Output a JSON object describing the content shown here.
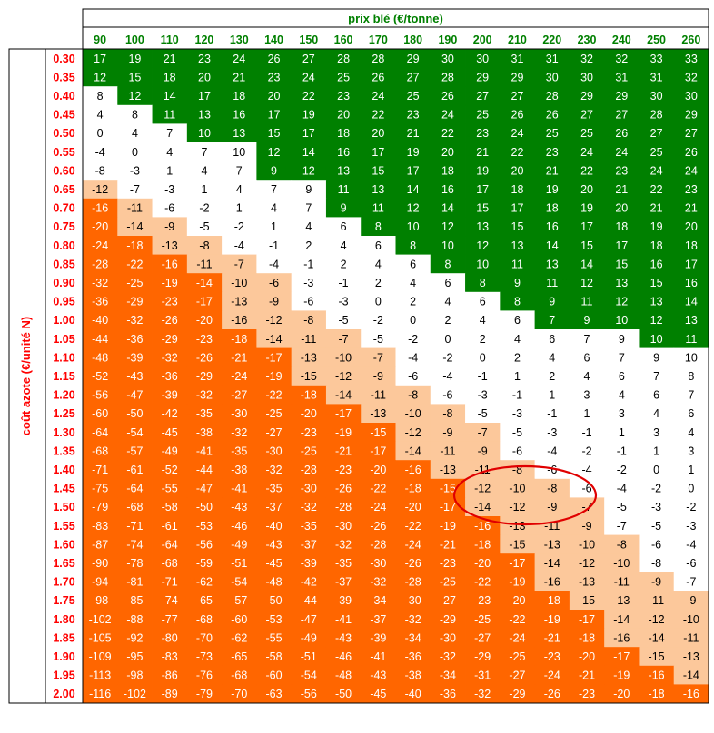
{
  "chart_data": {
    "type": "heatmap",
    "title": "",
    "xlabel": "prix blé (€/tonne)",
    "ylabel": "coût azote (€/unité N)",
    "x": [
      "90",
      "100",
      "110",
      "120",
      "130",
      "140",
      "150",
      "160",
      "170",
      "180",
      "190",
      "200",
      "210",
      "220",
      "230",
      "240",
      "250",
      "260"
    ],
    "y": [
      "0.30",
      "0.35",
      "0.40",
      "0.45",
      "0.50",
      "0.55",
      "0.60",
      "0.65",
      "0.70",
      "0.75",
      "0.80",
      "0.85",
      "0.90",
      "0.95",
      "1.00",
      "1.05",
      "1.10",
      "1.15",
      "1.20",
      "1.25",
      "1.30",
      "1.35",
      "1.40",
      "1.45",
      "1.50",
      "1.55",
      "1.60",
      "1.65",
      "1.70",
      "1.75",
      "1.80",
      "1.85",
      "1.90",
      "1.95",
      "2.00"
    ],
    "values": [
      [
        17,
        19,
        21,
        23,
        24,
        26,
        27,
        28,
        28,
        29,
        30,
        30,
        31,
        31,
        32,
        32,
        33,
        33
      ],
      [
        12,
        15,
        18,
        20,
        21,
        23,
        24,
        25,
        26,
        27,
        28,
        29,
        29,
        30,
        30,
        31,
        31,
        32
      ],
      [
        8,
        12,
        14,
        17,
        18,
        20,
        22,
        23,
        24,
        25,
        26,
        27,
        27,
        28,
        29,
        29,
        30,
        30
      ],
      [
        4,
        8,
        11,
        13,
        16,
        17,
        19,
        20,
        22,
        23,
        24,
        25,
        26,
        26,
        27,
        27,
        28,
        29
      ],
      [
        0,
        4,
        7,
        10,
        13,
        15,
        17,
        18,
        20,
        21,
        22,
        23,
        24,
        25,
        25,
        26,
        27,
        27
      ],
      [
        -4,
        0,
        4,
        7,
        10,
        12,
        14,
        16,
        17,
        19,
        20,
        21,
        22,
        23,
        24,
        24,
        25,
        26
      ],
      [
        -8,
        -3,
        1,
        4,
        7,
        9,
        12,
        13,
        15,
        17,
        18,
        19,
        20,
        21,
        22,
        23,
        24,
        24
      ],
      [
        -12,
        -7,
        -3,
        1,
        4,
        7,
        9,
        11,
        13,
        14,
        16,
        17,
        18,
        19,
        20,
        21,
        22,
        23
      ],
      [
        -16,
        -11,
        -6,
        -2,
        1,
        4,
        7,
        9,
        11,
        12,
        14,
        15,
        17,
        18,
        19,
        20,
        21,
        21
      ],
      [
        -20,
        -14,
        -9,
        -5,
        -2,
        1,
        4,
        6,
        8,
        10,
        12,
        13,
        15,
        16,
        17,
        18,
        19,
        20
      ],
      [
        -24,
        -18,
        -13,
        -8,
        -4,
        -1,
        2,
        4,
        6,
        8,
        10,
        12,
        13,
        14,
        15,
        17,
        18,
        18
      ],
      [
        -28,
        -22,
        -16,
        -11,
        -7,
        -4,
        -1,
        2,
        4,
        6,
        8,
        10,
        11,
        13,
        14,
        15,
        16,
        17
      ],
      [
        -32,
        -25,
        -19,
        -14,
        -10,
        -6,
        -3,
        -1,
        2,
        4,
        6,
        8,
        9,
        11,
        12,
        13,
        15,
        16
      ],
      [
        -36,
        -29,
        -23,
        -17,
        -13,
        -9,
        -6,
        -3,
        0,
        2,
        4,
        6,
        8,
        9,
        11,
        12,
        13,
        14
      ],
      [
        -40,
        -32,
        -26,
        -20,
        -16,
        -12,
        -8,
        -5,
        -2,
        0,
        2,
        4,
        6,
        7,
        9,
        10,
        12,
        13
      ],
      [
        -44,
        -36,
        -29,
        -23,
        -18,
        -14,
        -11,
        -7,
        -5,
        -2,
        0,
        2,
        4,
        6,
        7,
        9,
        10,
        11
      ],
      [
        -48,
        -39,
        -32,
        -26,
        -21,
        -17,
        -13,
        -10,
        -7,
        -4,
        -2,
        0,
        2,
        4,
        6,
        7,
        9,
        10
      ],
      [
        -52,
        -43,
        -36,
        -29,
        -24,
        -19,
        -15,
        -12,
        -9,
        -6,
        -4,
        -1,
        1,
        2,
        4,
        6,
        7,
        8
      ],
      [
        -56,
        -47,
        -39,
        -32,
        -27,
        -22,
        -18,
        -14,
        -11,
        -8,
        -6,
        -3,
        -1,
        1,
        3,
        4,
        6,
        7
      ],
      [
        -60,
        -50,
        -42,
        -35,
        -30,
        -25,
        -20,
        -17,
        -13,
        -10,
        -8,
        -5,
        -3,
        -1,
        1,
        3,
        4,
        6
      ],
      [
        -64,
        -54,
        -45,
        -38,
        -32,
        -27,
        -23,
        -19,
        -15,
        -12,
        -9,
        -7,
        -5,
        -3,
        -1,
        1,
        3,
        4
      ],
      [
        -68,
        -57,
        -49,
        -41,
        -35,
        -30,
        -25,
        -21,
        -17,
        -14,
        -11,
        -9,
        -6,
        -4,
        -2,
        -1,
        1,
        3
      ],
      [
        -71,
        -61,
        -52,
        -44,
        -38,
        -32,
        -28,
        -23,
        -20,
        -16,
        -13,
        -11,
        -8,
        -6,
        -4,
        -2,
        0,
        1
      ],
      [
        -75,
        -64,
        -55,
        -47,
        -41,
        -35,
        -30,
        -26,
        -22,
        -18,
        -15,
        -12,
        -10,
        -8,
        -6,
        -4,
        -2,
        0
      ],
      [
        -79,
        -68,
        -58,
        -50,
        -43,
        -37,
        -32,
        -28,
        -24,
        -20,
        -17,
        -14,
        -12,
        -9,
        -7,
        -5,
        -3,
        -2
      ],
      [
        -83,
        -71,
        -61,
        -53,
        -46,
        -40,
        -35,
        -30,
        -26,
        -22,
        -19,
        -16,
        -13,
        -11,
        -9,
        -7,
        -5,
        -3
      ],
      [
        -87,
        -74,
        -64,
        -56,
        -49,
        -43,
        -37,
        -32,
        -28,
        -24,
        -21,
        -18,
        -15,
        -13,
        -10,
        -8,
        -6,
        -4
      ],
      [
        -90,
        -78,
        -68,
        -59,
        -51,
        -45,
        -39,
        -35,
        -30,
        -26,
        -23,
        -20,
        -17,
        -14,
        -12,
        -10,
        -8,
        -6
      ],
      [
        -94,
        -81,
        -71,
        -62,
        -54,
        -48,
        -42,
        -37,
        -32,
        -28,
        -25,
        -22,
        -19,
        -16,
        -13,
        -11,
        -9,
        -7
      ],
      [
        -98,
        -85,
        -74,
        -65,
        -57,
        -50,
        -44,
        -39,
        -34,
        -30,
        -27,
        -23,
        -20,
        -18,
        -15,
        -13,
        -11,
        -9
      ],
      [
        -102,
        -88,
        -77,
        -68,
        -60,
        -53,
        -47,
        -41,
        -37,
        -32,
        -29,
        -25,
        -22,
        -19,
        -17,
        -14,
        -12,
        -10
      ],
      [
        -105,
        -92,
        -80,
        -70,
        -62,
        -55,
        -49,
        -43,
        -39,
        -34,
        -30,
        -27,
        -24,
        -21,
        -18,
        -16,
        -14,
        -11
      ],
      [
        -109,
        -95,
        -83,
        -73,
        -65,
        -58,
        -51,
        -46,
        -41,
        -36,
        -32,
        -29,
        -25,
        -23,
        -20,
        -17,
        -15,
        -13
      ],
      [
        -113,
        -98,
        -86,
        -76,
        -68,
        -60,
        -54,
        -48,
        -43,
        -38,
        -34,
        -31,
        -27,
        -24,
        -21,
        -19,
        -16,
        -14
      ],
      [
        -116,
        -102,
        -89,
        -79,
        -70,
        -63,
        -56,
        -50,
        -45,
        -40,
        -36,
        -32,
        -29,
        -26,
        -23,
        -20,
        -18,
        -16
      ]
    ],
    "category_colors": {
      "profit_high": "#008000",
      "neutral": "#ffffff",
      "loss_small": "#fcc89b",
      "loss_large": "#ff6600"
    },
    "header_color": "#008000",
    "row_label_color": "#ff0000",
    "annotation": "red ellipse highlighting values around prix 210–230, coût 1.40–1.45"
  }
}
